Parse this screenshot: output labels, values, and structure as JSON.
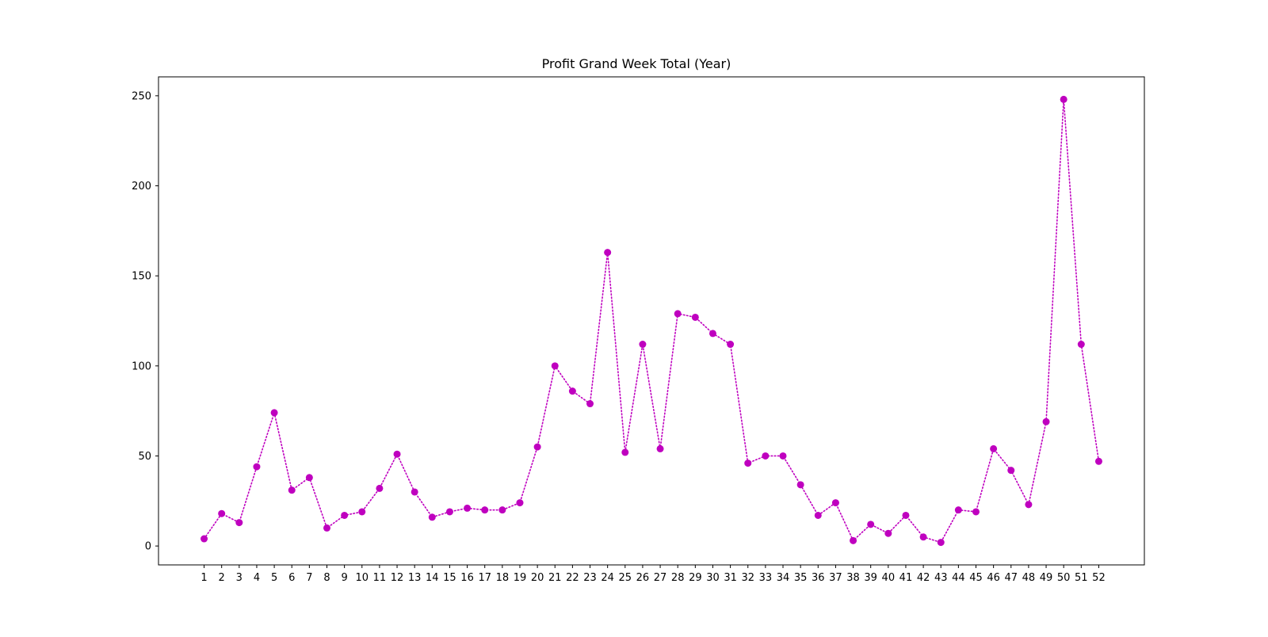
{
  "chart_data": {
    "type": "line",
    "title": "Profit Grand Week Total (Year)",
    "xlabel": "",
    "ylabel": "",
    "x": [
      1,
      2,
      3,
      4,
      5,
      6,
      7,
      8,
      9,
      10,
      11,
      12,
      13,
      14,
      15,
      16,
      17,
      18,
      19,
      20,
      21,
      22,
      23,
      24,
      25,
      26,
      27,
      28,
      29,
      30,
      31,
      32,
      33,
      34,
      35,
      36,
      37,
      38,
      39,
      40,
      41,
      42,
      43,
      44,
      45,
      46,
      47,
      48,
      49,
      50,
      51,
      52
    ],
    "x_tick_labels": [
      "1",
      "2",
      "3",
      "4",
      "5",
      "6",
      "7",
      "8",
      "9",
      "10",
      "11",
      "12",
      "13",
      "14",
      "15",
      "16",
      "17",
      "18",
      "19",
      "20",
      "21",
      "22",
      "23",
      "24",
      "25",
      "26",
      "27",
      "28",
      "29",
      "30",
      "31",
      "32",
      "33",
      "34",
      "35",
      "36",
      "37",
      "38",
      "39",
      "40",
      "41",
      "42",
      "43",
      "44",
      "45",
      "46",
      "47",
      "48",
      "49",
      "50",
      "51",
      "52"
    ],
    "series": [
      {
        "values": [
          4,
          18,
          13,
          44,
          74,
          31,
          38,
          10,
          17,
          19,
          32,
          51,
          30,
          16,
          19,
          21,
          20,
          20,
          24,
          55,
          100,
          86,
          79,
          163,
          52,
          112,
          54,
          129,
          127,
          118,
          112,
          46,
          50,
          50,
          34,
          17,
          24,
          3,
          12,
          7,
          17,
          5,
          2,
          20,
          19,
          54,
          42,
          23,
          69,
          248,
          112,
          47
        ],
        "color": "#bf00bf",
        "line_style": "dotted",
        "marker": "circle"
      }
    ],
    "yticks": [
      0,
      50,
      100,
      150,
      200,
      250
    ],
    "ylim": [
      -10.5,
      260.5
    ],
    "xlim": [
      -1.6,
      54.6
    ],
    "grid": false,
    "legend": "none"
  }
}
